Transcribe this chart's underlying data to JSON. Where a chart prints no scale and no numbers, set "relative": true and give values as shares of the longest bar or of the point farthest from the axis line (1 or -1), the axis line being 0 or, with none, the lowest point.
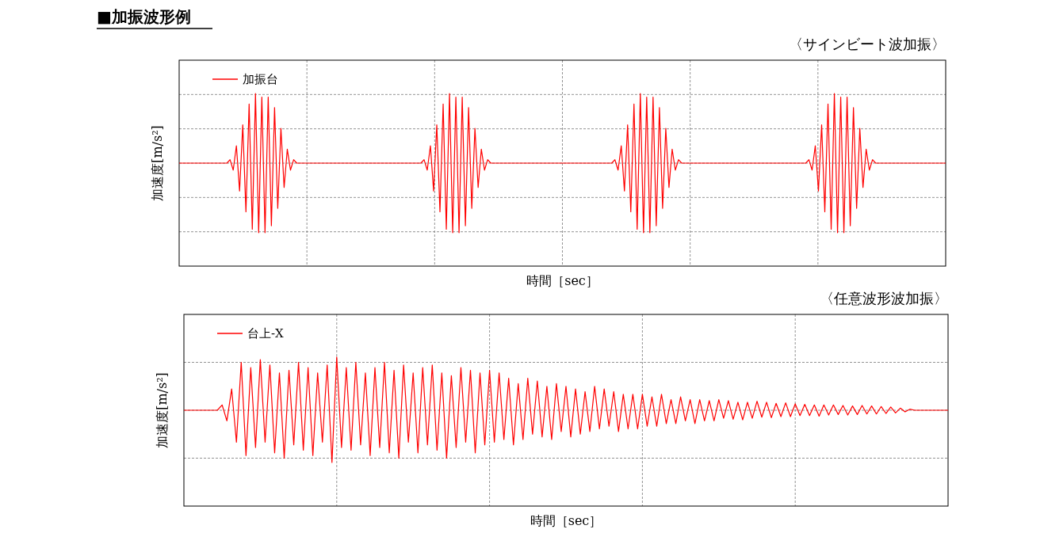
{
  "chart_data": [
    {
      "type": "line",
      "title": "■加振波形例",
      "subtitle": "〈サインビート波加振〉",
      "xlabel": "時間［sec］",
      "ylabel": "加速度[m/s²]",
      "relative": true,
      "grid": true,
      "legend": "top left",
      "categories": [
        null,
        null,
        null,
        null,
        null,
        null,
        null,
        null,
        null,
        null,
        null,
        null,
        null,
        null,
        null,
        null,
        null,
        null,
        null,
        null,
        null,
        null,
        null,
        null,
        null,
        null,
        null,
        null,
        null,
        null,
        null,
        null,
        null,
        null,
        null,
        null,
        null,
        null,
        null,
        null,
        null,
        null,
        null,
        null,
        null,
        null,
        null,
        null,
        null,
        null,
        null,
        null,
        null,
        null,
        null,
        null,
        null,
        null,
        null,
        null,
        null,
        null,
        null,
        null,
        null,
        null,
        null,
        null,
        null,
        null,
        null,
        null,
        null,
        null,
        null,
        null,
        null,
        null,
        null,
        null,
        null,
        null,
        null,
        null,
        null,
        null,
        null,
        null,
        null,
        null,
        null,
        null,
        null,
        null,
        null,
        null,
        null,
        null,
        null,
        null,
        null,
        null,
        null,
        null,
        null,
        null,
        null,
        null,
        null,
        null,
        null,
        null,
        null,
        null,
        null,
        null,
        null,
        null,
        null,
        null,
        null,
        null,
        null,
        null,
        null,
        null,
        null,
        null,
        null,
        null,
        null,
        null,
        null,
        null,
        null,
        null,
        null,
        null,
        null,
        null,
        null,
        null,
        null,
        null,
        null,
        null,
        null,
        null,
        null,
        null,
        null,
        null,
        null,
        null,
        null,
        null,
        null,
        null,
        null,
        null,
        null,
        null,
        null,
        null,
        null,
        null,
        null,
        null,
        null,
        null,
        null,
        null,
        null,
        null,
        null,
        null,
        null,
        null,
        null,
        null,
        null,
        null,
        null,
        null,
        null,
        null,
        null,
        null,
        null,
        null,
        null,
        null,
        null,
        null,
        null,
        null,
        null,
        null,
        null,
        null,
        null,
        null,
        null,
        null,
        null,
        null,
        null,
        null,
        null,
        null,
        null,
        null,
        null,
        null,
        null,
        null,
        null,
        null,
        null,
        null,
        null,
        null,
        null,
        null,
        null,
        null,
        null,
        null,
        null,
        null,
        null,
        null,
        null,
        null,
        null,
        null,
        null,
        null,
        null,
        null,
        null,
        null
      ],
      "series": [
        {
          "name": "加振台",
          "color": "#ff0000",
          "values": [
            0,
            0,
            0,
            0,
            0,
            0,
            0,
            0,
            0,
            0,
            0,
            0,
            0,
            0,
            0,
            0,
            0.05,
            -0.1,
            0.25,
            -0.4,
            0.55,
            -0.7,
            0.85,
            -0.95,
            1,
            -1,
            0.95,
            -1,
            0.95,
            -0.9,
            0.8,
            -0.65,
            0.5,
            -0.35,
            0.2,
            -0.1,
            0.05,
            0,
            0,
            0,
            0,
            0,
            0,
            0,
            0,
            0,
            0,
            0,
            0,
            0,
            0,
            0,
            0,
            0,
            0,
            0,
            0,
            0,
            0,
            0,
            0,
            0,
            0,
            0,
            0,
            0,
            0,
            0,
            0,
            0,
            0,
            0,
            0,
            0,
            0,
            0,
            0,
            0.05,
            -0.1,
            0.25,
            -0.4,
            0.55,
            -0.7,
            0.85,
            -0.95,
            1,
            -1,
            0.95,
            -1,
            0.95,
            -0.9,
            0.8,
            -0.65,
            0.5,
            -0.35,
            0.2,
            -0.1,
            0.05,
            0,
            0,
            0,
            0,
            0,
            0,
            0,
            0,
            0,
            0,
            0,
            0,
            0,
            0,
            0,
            0,
            0,
            0,
            0,
            0,
            0,
            0,
            0,
            0,
            0,
            0,
            0,
            0,
            0,
            0,
            0,
            0,
            0,
            0,
            0,
            0,
            0,
            0,
            0,
            0.05,
            -0.1,
            0.25,
            -0.4,
            0.55,
            -0.7,
            0.85,
            -0.95,
            1,
            -1,
            0.95,
            -1,
            0.95,
            -0.9,
            0.8,
            -0.65,
            0.5,
            -0.35,
            0.2,
            -0.1,
            0.05,
            0,
            0,
            0,
            0,
            0,
            0,
            0,
            0,
            0,
            0,
            0,
            0,
            0,
            0,
            0,
            0,
            0,
            0,
            0,
            0,
            0,
            0,
            0,
            0,
            0,
            0,
            0,
            0,
            0,
            0,
            0,
            0,
            0,
            0,
            0,
            0,
            0,
            0,
            0,
            0,
            0.05,
            -0.1,
            0.25,
            -0.4,
            0.55,
            -0.7,
            0.85,
            -0.95,
            1,
            -1,
            0.95,
            -1,
            0.95,
            -0.9,
            0.8,
            -0.65,
            0.5,
            -0.35,
            0.2,
            -0.1,
            0.05,
            0,
            0,
            0,
            0,
            0,
            0,
            0,
            0,
            0,
            0,
            0,
            0,
            0,
            0,
            0,
            0,
            0,
            0,
            0,
            0,
            0,
            0,
            0
          ]
        }
      ]
    },
    {
      "type": "line",
      "subtitle": "〈任意波形波加振〉",
      "xlabel": "時間［sec］",
      "ylabel": "加速度[m/s²]",
      "relative": true,
      "grid": true,
      "legend": "top left",
      "categories": [
        null,
        null,
        null,
        null,
        null,
        null,
        null,
        null,
        null,
        null,
        null,
        null,
        null,
        null,
        null,
        null,
        null,
        null,
        null,
        null,
        null,
        null,
        null,
        null,
        null,
        null,
        null,
        null,
        null,
        null,
        null,
        null,
        null,
        null,
        null,
        null,
        null,
        null,
        null,
        null,
        null,
        null,
        null,
        null,
        null,
        null,
        null,
        null,
        null,
        null,
        null,
        null,
        null,
        null,
        null,
        null,
        null,
        null,
        null,
        null,
        null,
        null,
        null,
        null,
        null,
        null,
        null,
        null,
        null,
        null,
        null,
        null,
        null,
        null,
        null,
        null,
        null,
        null,
        null,
        null,
        null,
        null,
        null,
        null,
        null,
        null,
        null,
        null,
        null,
        null,
        null,
        null,
        null,
        null,
        null,
        null,
        null,
        null,
        null,
        null,
        null,
        null,
        null,
        null,
        null,
        null,
        null,
        null,
        null,
        null,
        null,
        null,
        null,
        null,
        null,
        null,
        null,
        null,
        null,
        null,
        null,
        null,
        null,
        null,
        null,
        null,
        null,
        null,
        null,
        null,
        null,
        null,
        null,
        null,
        null,
        null,
        null,
        null,
        null,
        null,
        null,
        null,
        null,
        null,
        null,
        null,
        null,
        null,
        null,
        null,
        null,
        null,
        null,
        null,
        null,
        null,
        null,
        null,
        null,
        null,
        null
      ],
      "series": [
        {
          "name": "台上-X",
          "color": "#ff0000",
          "values": [
            0,
            0,
            0,
            0,
            0,
            0,
            0,
            0,
            0.1,
            -0.2,
            0.4,
            -0.6,
            0.9,
            -0.85,
            0.8,
            -0.7,
            0.95,
            -0.6,
            0.85,
            -0.8,
            0.7,
            -0.9,
            0.75,
            -0.65,
            0.9,
            -0.75,
            0.8,
            -0.85,
            0.7,
            -0.6,
            0.85,
            -0.98,
            1,
            -0.7,
            0.8,
            -0.75,
            0.9,
            -0.65,
            0.7,
            -0.85,
            0.8,
            -0.7,
            0.9,
            -0.8,
            0.75,
            -0.9,
            0.85,
            -0.6,
            0.7,
            -0.8,
            0.8,
            -0.65,
            0.85,
            -0.75,
            0.7,
            -0.9,
            0.65,
            -0.7,
            0.8,
            -0.6,
            0.75,
            -0.8,
            0.7,
            -0.65,
            0.75,
            -0.6,
            0.7,
            -0.55,
            0.6,
            -0.65,
            0.5,
            -0.55,
            0.6,
            -0.45,
            0.55,
            -0.5,
            0.45,
            -0.55,
            0.5,
            -0.4,
            0.45,
            -0.5,
            0.4,
            -0.45,
            0.35,
            -0.4,
            0.45,
            -0.35,
            0.4,
            -0.3,
            0.35,
            -0.4,
            0.3,
            -0.35,
            0.3,
            -0.35,
            0.3,
            -0.3,
            0.25,
            -0.3,
            0.3,
            -0.25,
            0.2,
            -0.25,
            0.25,
            -0.2,
            0.2,
            -0.25,
            0.2,
            -0.2,
            0.18,
            -0.2,
            0.2,
            -0.15,
            0.18,
            -0.17,
            0.15,
            -0.18,
            0.15,
            -0.15,
            0.17,
            -0.13,
            0.15,
            -0.14,
            0.13,
            -0.12,
            0.14,
            -0.12,
            0.12,
            -0.1,
            0.11,
            -0.1,
            0.1,
            -0.11,
            0.1,
            -0.09,
            0.1,
            -0.08,
            0.09,
            -0.09,
            0.08,
            -0.08,
            0.09,
            -0.07,
            0.08,
            -0.07,
            0.07,
            -0.06,
            0.06,
            -0.05,
            0.04,
            -0.03,
            0.02,
            0,
            0,
            0,
            0,
            0,
            0,
            0,
            0
          ]
        }
      ]
    }
  ]
}
